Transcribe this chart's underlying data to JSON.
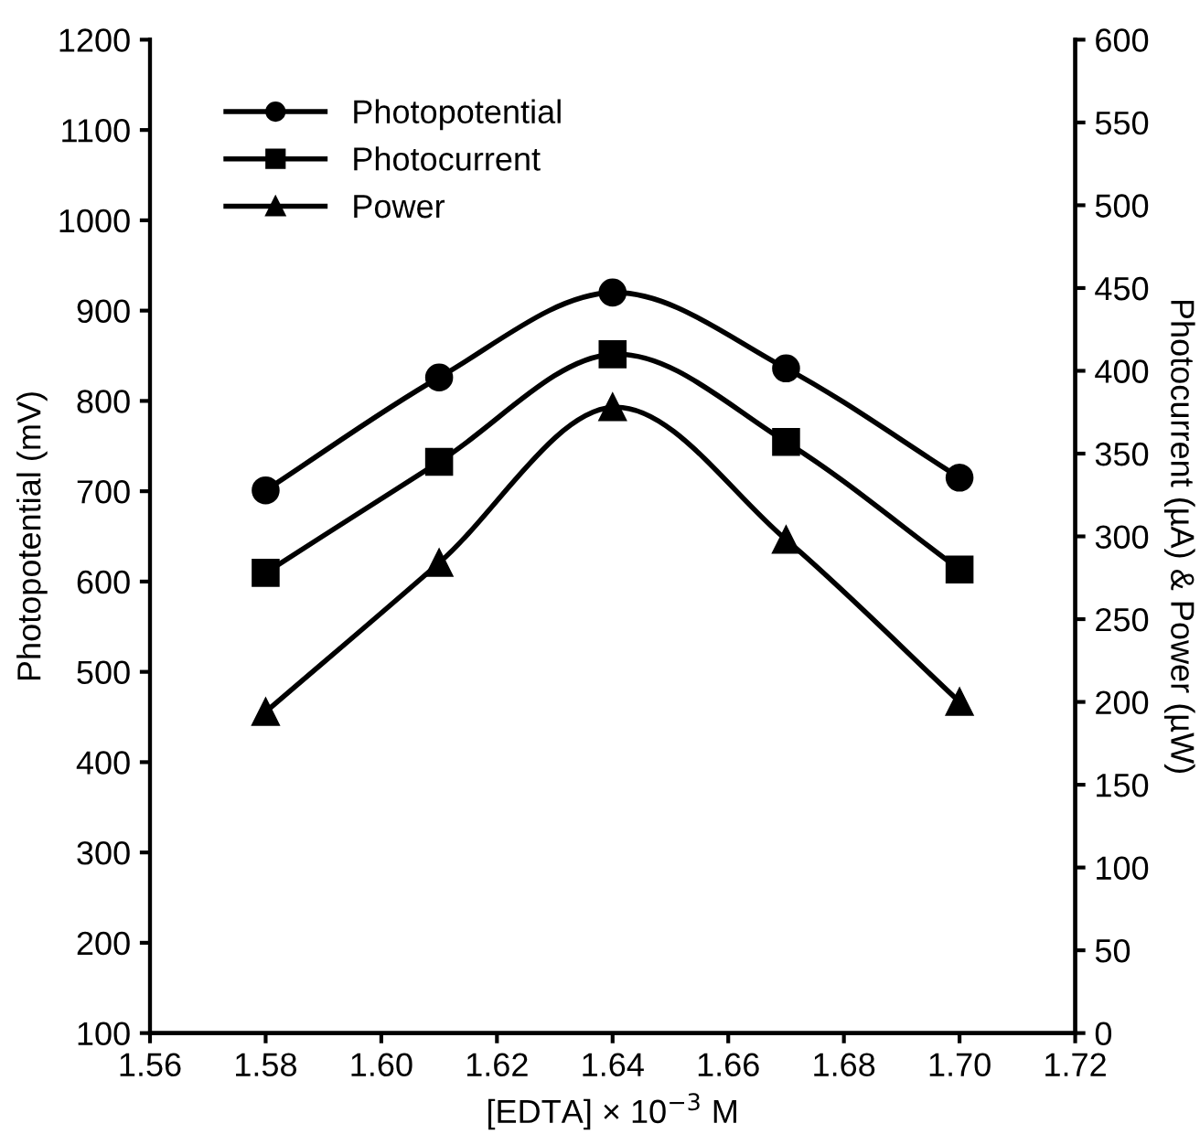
{
  "chart_data": {
    "type": "line",
    "xlabel": "[EDTA] × 10$^{−3}$ M",
    "ylabel": "Photopotential (mV)",
    "y2label": "Photocurrent (µA) & Power (µW)",
    "x": [
      1.58,
      1.61,
      1.64,
      1.67,
      1.7
    ],
    "xlim": [
      1.56,
      1.72
    ],
    "xticks": [
      {
        "value": 1.56,
        "label": "1.56"
      },
      {
        "value": 1.58,
        "label": "1.58"
      },
      {
        "value": 1.6,
        "label": "1.60"
      },
      {
        "value": 1.62,
        "label": "1.62"
      },
      {
        "value": 1.64,
        "label": "1.64"
      },
      {
        "value": 1.66,
        "label": "1.66"
      },
      {
        "value": 1.68,
        "label": "1.68"
      },
      {
        "value": 1.7,
        "label": "1.70"
      },
      {
        "value": 1.72,
        "label": "1.72"
      }
    ],
    "ylim": [
      100,
      1200
    ],
    "yticks": [
      100,
      200,
      300,
      400,
      500,
      600,
      700,
      800,
      900,
      1000,
      1100,
      1200
    ],
    "y2lim": [
      0,
      600
    ],
    "y2ticks": [
      0,
      50,
      100,
      150,
      200,
      250,
      300,
      350,
      400,
      450,
      500,
      550,
      600
    ],
    "grid": false,
    "legend": "top left",
    "line_style": "solid",
    "series": [
      {
        "name": "Photopotential",
        "color": "#000000",
        "marker": "circle",
        "values": [
          701,
          826,
          920,
          836,
          715
        ]
      },
      {
        "name": "Photocurrent",
        "color": "#000000",
        "marker": "square",
        "axis": "y2",
        "values": [
          278,
          345,
          410,
          357,
          280
        ]
      },
      {
        "name": "Power",
        "color": "#000000",
        "marker": "triangle",
        "axis": "y2",
        "values": [
          194,
          284,
          378,
          298,
          200
        ]
      }
    ]
  }
}
